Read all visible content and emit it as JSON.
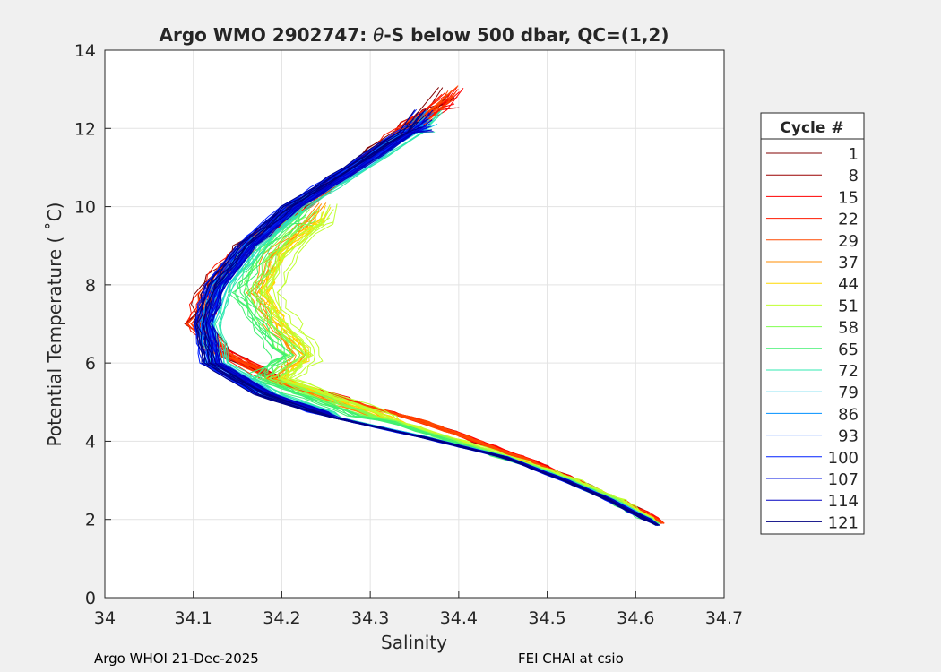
{
  "chart_data": {
    "type": "line",
    "title": "Argo WMO 2902747: θ-S below 500 dbar,  QC=(1,2)",
    "title_parts": {
      "prefix": "Argo WMO 2902747: ",
      "theta": "θ",
      "suffix": "-S below 500 dbar,  QC=(1,2)"
    },
    "xlabel": "Salinity",
    "ylabel": "Potential Temperature ( ˚C)",
    "xlim": [
      34,
      34.7
    ],
    "ylim": [
      0,
      14
    ],
    "xticks": [
      "34",
      "34.1",
      "34.2",
      "34.3",
      "34.4",
      "34.5",
      "34.6",
      "34.7"
    ],
    "yticks": [
      "0",
      "2",
      "4",
      "6",
      "8",
      "10",
      "12",
      "14"
    ],
    "grid": true,
    "legend": {
      "title": "Cycle #",
      "placement": "right-outside"
    },
    "profiles": {
      "early": [
        [
          34.39,
          12.8
        ],
        [
          34.31,
          11.5
        ],
        [
          34.22,
          10.0
        ],
        [
          34.16,
          9.0
        ],
        [
          34.12,
          8.0
        ],
        [
          34.105,
          7.0
        ],
        [
          34.13,
          6.3
        ],
        [
          34.2,
          5.5
        ],
        [
          34.28,
          5.0
        ],
        [
          34.36,
          4.5
        ],
        [
          34.42,
          4.0
        ],
        [
          34.48,
          3.5
        ],
        [
          34.53,
          3.0
        ],
        [
          34.58,
          2.5
        ],
        [
          34.63,
          1.9
        ]
      ],
      "middle": [
        [
          34.25,
          9.8
        ],
        [
          34.2,
          8.8
        ],
        [
          34.18,
          7.8
        ],
        [
          34.2,
          7.0
        ],
        [
          34.23,
          6.2
        ],
        [
          34.2,
          5.6
        ],
        [
          34.26,
          5.1
        ],
        [
          34.33,
          4.5
        ],
        [
          34.4,
          4.0
        ],
        [
          34.47,
          3.5
        ],
        [
          34.53,
          3.0
        ],
        [
          34.58,
          2.5
        ],
        [
          34.625,
          1.9
        ]
      ],
      "late": [
        [
          34.36,
          12.2
        ],
        [
          34.28,
          11.0
        ],
        [
          34.21,
          10.0
        ],
        [
          34.16,
          9.0
        ],
        [
          34.125,
          8.0
        ],
        [
          34.11,
          7.0
        ],
        [
          34.12,
          6.0
        ],
        [
          34.18,
          5.2
        ],
        [
          34.26,
          4.6
        ],
        [
          34.36,
          4.1
        ],
        [
          34.45,
          3.6
        ],
        [
          34.52,
          3.0
        ],
        [
          34.57,
          2.5
        ],
        [
          34.625,
          1.85
        ]
      ]
    },
    "series": [
      {
        "name": "1",
        "color": "#800000",
        "profile": "early",
        "dS": 0.0
      },
      {
        "name": "8",
        "color": "#9a0000",
        "profile": "early",
        "dS": 0.004
      },
      {
        "name": "15",
        "color": "#ff0000",
        "profile": "early",
        "dS": 0.002
      },
      {
        "name": "22",
        "color": "#ff1a00",
        "profile": "early",
        "dS": -0.002
      },
      {
        "name": "29",
        "color": "#ff4800",
        "profile": "early",
        "dS": 0.0
      },
      {
        "name": "37",
        "color": "#ff8c00",
        "profile": "middle",
        "dS": -0.01
      },
      {
        "name": "44",
        "color": "#ffd800",
        "profile": "middle",
        "dS": 0.0
      },
      {
        "name": "51",
        "color": "#c0ff30",
        "profile": "middle",
        "dS": 0.01
      },
      {
        "name": "58",
        "color": "#80ff50",
        "profile": "middle",
        "dS": -0.015
      },
      {
        "name": "65",
        "color": "#40f070",
        "profile": "middle",
        "dS": -0.03
      },
      {
        "name": "72",
        "color": "#30e8b0",
        "profile": "late",
        "dS": 0.015
      },
      {
        "name": "79",
        "color": "#20c8e8",
        "profile": "late",
        "dS": 0.008
      },
      {
        "name": "86",
        "color": "#0090ff",
        "profile": "late",
        "dS": 0.004
      },
      {
        "name": "93",
        "color": "#0050ff",
        "profile": "late",
        "dS": 0.0
      },
      {
        "name": "100",
        "color": "#0020ff",
        "profile": "late",
        "dS": -0.002
      },
      {
        "name": "107",
        "color": "#0010e0",
        "profile": "late",
        "dS": 0.001
      },
      {
        "name": "114",
        "color": "#0000c0",
        "profile": "late",
        "dS": 0.003
      },
      {
        "name": "121",
        "color": "#000080",
        "profile": "late",
        "dS": 0.0
      }
    ]
  },
  "footer": {
    "left": "Argo WHOI 21-Dec-2025",
    "right": "FEI CHAI at csio"
  }
}
